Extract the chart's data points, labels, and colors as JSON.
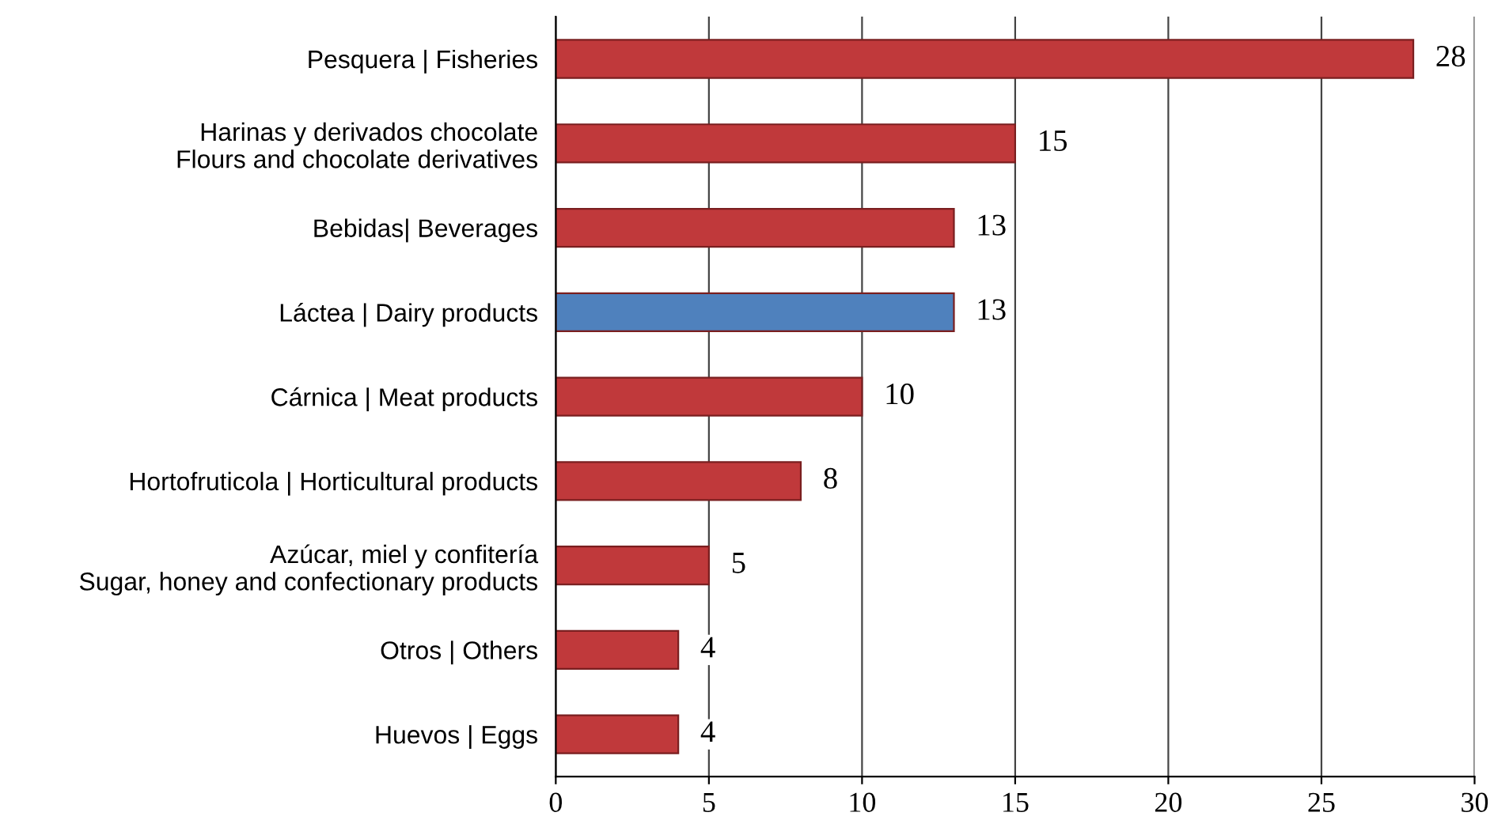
{
  "chart_data": {
    "type": "bar",
    "orientation": "horizontal",
    "categories": [
      "Pesquera | Fisheries",
      "Harinas y derivados chocolate\nFlours and chocolate derivatives",
      "Bebidas| Beverages",
      "Láctea | Dairy products",
      "Cárnica | Meat products",
      "Hortofruticola | Horticultural products",
      "Azúcar, miel y confitería\nSugar, honey and confectionary products",
      "Otros | Others",
      "Huevos | Eggs"
    ],
    "values": [
      28,
      15,
      13,
      13,
      10,
      8,
      5,
      4,
      4
    ],
    "colors": [
      "#c0393b",
      "#c0393b",
      "#c0393b",
      "#4f81bd",
      "#c0393b",
      "#c0393b",
      "#c0393b",
      "#c0393b",
      "#c0393b"
    ],
    "xlim": [
      0,
      30
    ],
    "xticks": [
      0,
      5,
      10,
      15,
      20,
      25,
      30
    ],
    "grid": "x",
    "data_labels": true
  }
}
